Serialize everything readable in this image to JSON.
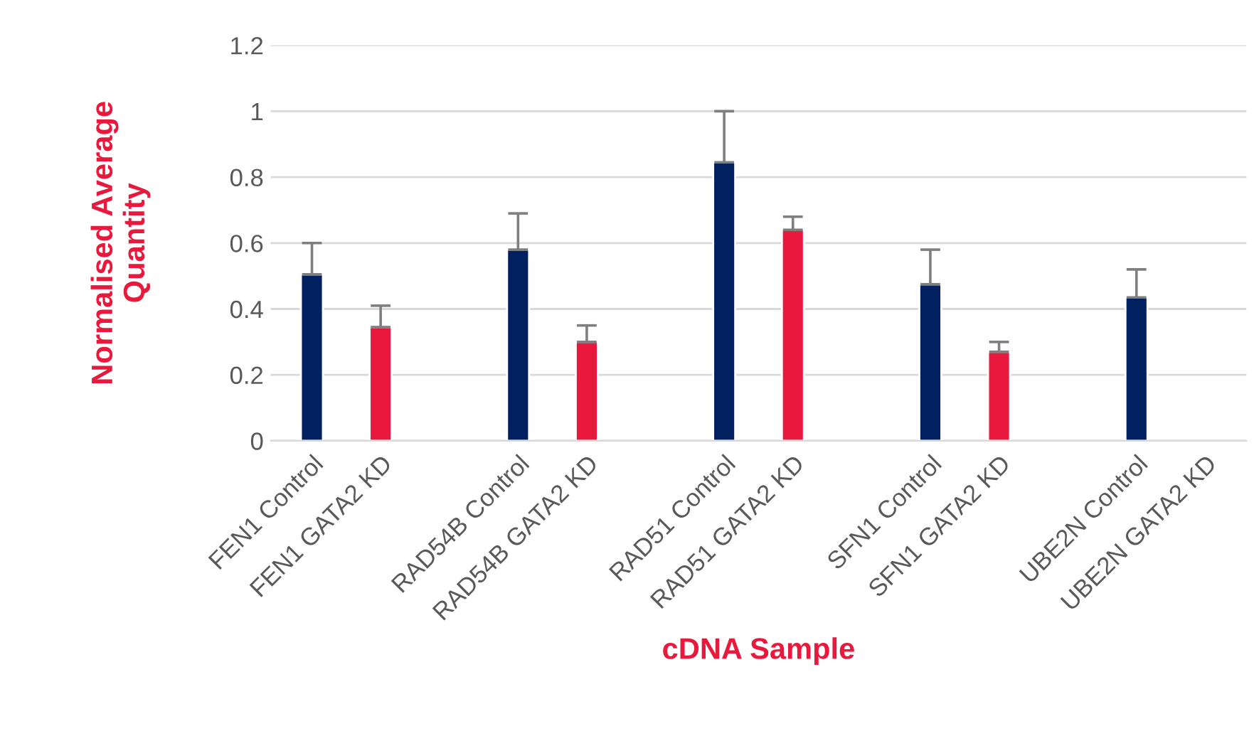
{
  "chart_data": {
    "type": "bar",
    "xlabel": "cDNA Sample",
    "ylabel": "Normalised Average\nQuantity",
    "categories": [
      "FEN1 Control",
      "FEN1 GATA2 KD",
      null,
      "RAD54B Control",
      "RAD54B GATA2 KD",
      null,
      "RAD51 Control",
      "RAD51 GATA2 KD",
      null,
      "SFN1 Control",
      "SFN1 GATA2 KD",
      null,
      "UBE2N Control",
      "UBE2N GATA2 KD"
    ],
    "values": [
      0.505,
      0.345,
      null,
      0.58,
      0.3,
      null,
      0.845,
      0.64,
      null,
      0.475,
      0.27,
      null,
      0.435,
      null
    ],
    "colors": [
      "#002060",
      "#e8193c",
      null,
      "#002060",
      "#e8193c",
      null,
      "#002060",
      "#e8193c",
      null,
      "#002060",
      "#e8193c",
      null,
      "#002060",
      "#e8193c"
    ],
    "errors": [
      [
        0.505,
        0.6
      ],
      [
        0.345,
        0.41
      ],
      null,
      [
        0.58,
        0.69
      ],
      [
        0.3,
        0.35
      ],
      null,
      [
        0.845,
        1.0
      ],
      [
        0.64,
        0.68
      ],
      null,
      [
        0.475,
        0.58
      ],
      [
        0.27,
        0.3
      ],
      null,
      [
        0.435,
        0.52
      ],
      null
    ],
    "ylim": [
      0,
      1.2
    ],
    "yticks": [
      0,
      0.2,
      0.4,
      0.6,
      0.8,
      1,
      1.2
    ],
    "grid": "y",
    "legend": false
  }
}
